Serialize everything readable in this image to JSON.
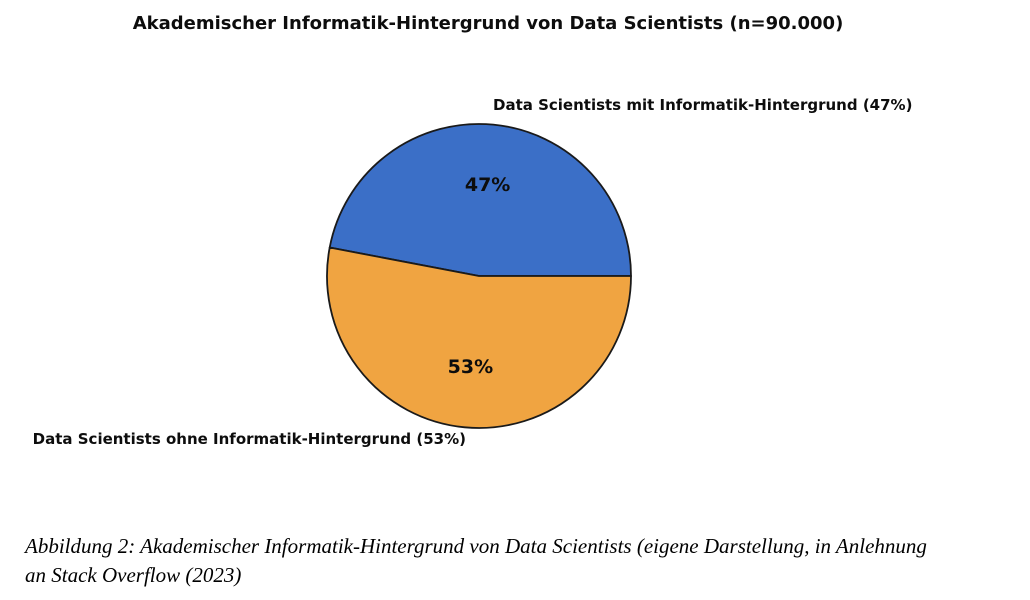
{
  "figure": {
    "caption_line1": "Abbildung 2: Akademischer Informatik-Hintergrund von Data Scientists (eigene Darstellung, in Anlehnung",
    "caption_line2": "an Stack Overflow (2023)"
  },
  "chart_data": {
    "type": "pie",
    "title": "Akademischer Informatik-Hintergrund von Data Scientists (n=90.000)",
    "sample_size_label": "n=90.000",
    "categories": [
      "Data Scientists mit Informatik-Hintergrund",
      "Data Scientists ohne Informatik-Hintergrund"
    ],
    "values": [
      47,
      53
    ],
    "unit": "%",
    "pct_labels": [
      "47%",
      "53%"
    ],
    "outer_labels": [
      "Data Scientists mit Informatik-Hintergrund (47%)",
      "Data Scientists ohne Informatik-Hintergrund (53%)"
    ],
    "colors": [
      "#3b6fc7",
      "#f0a441"
    ],
    "edge_color": "#1a1a1a",
    "start_angle": 0,
    "direction": "counterclockwise",
    "legend_position": "none",
    "pct_label_radius_ratio": 0.6
  }
}
